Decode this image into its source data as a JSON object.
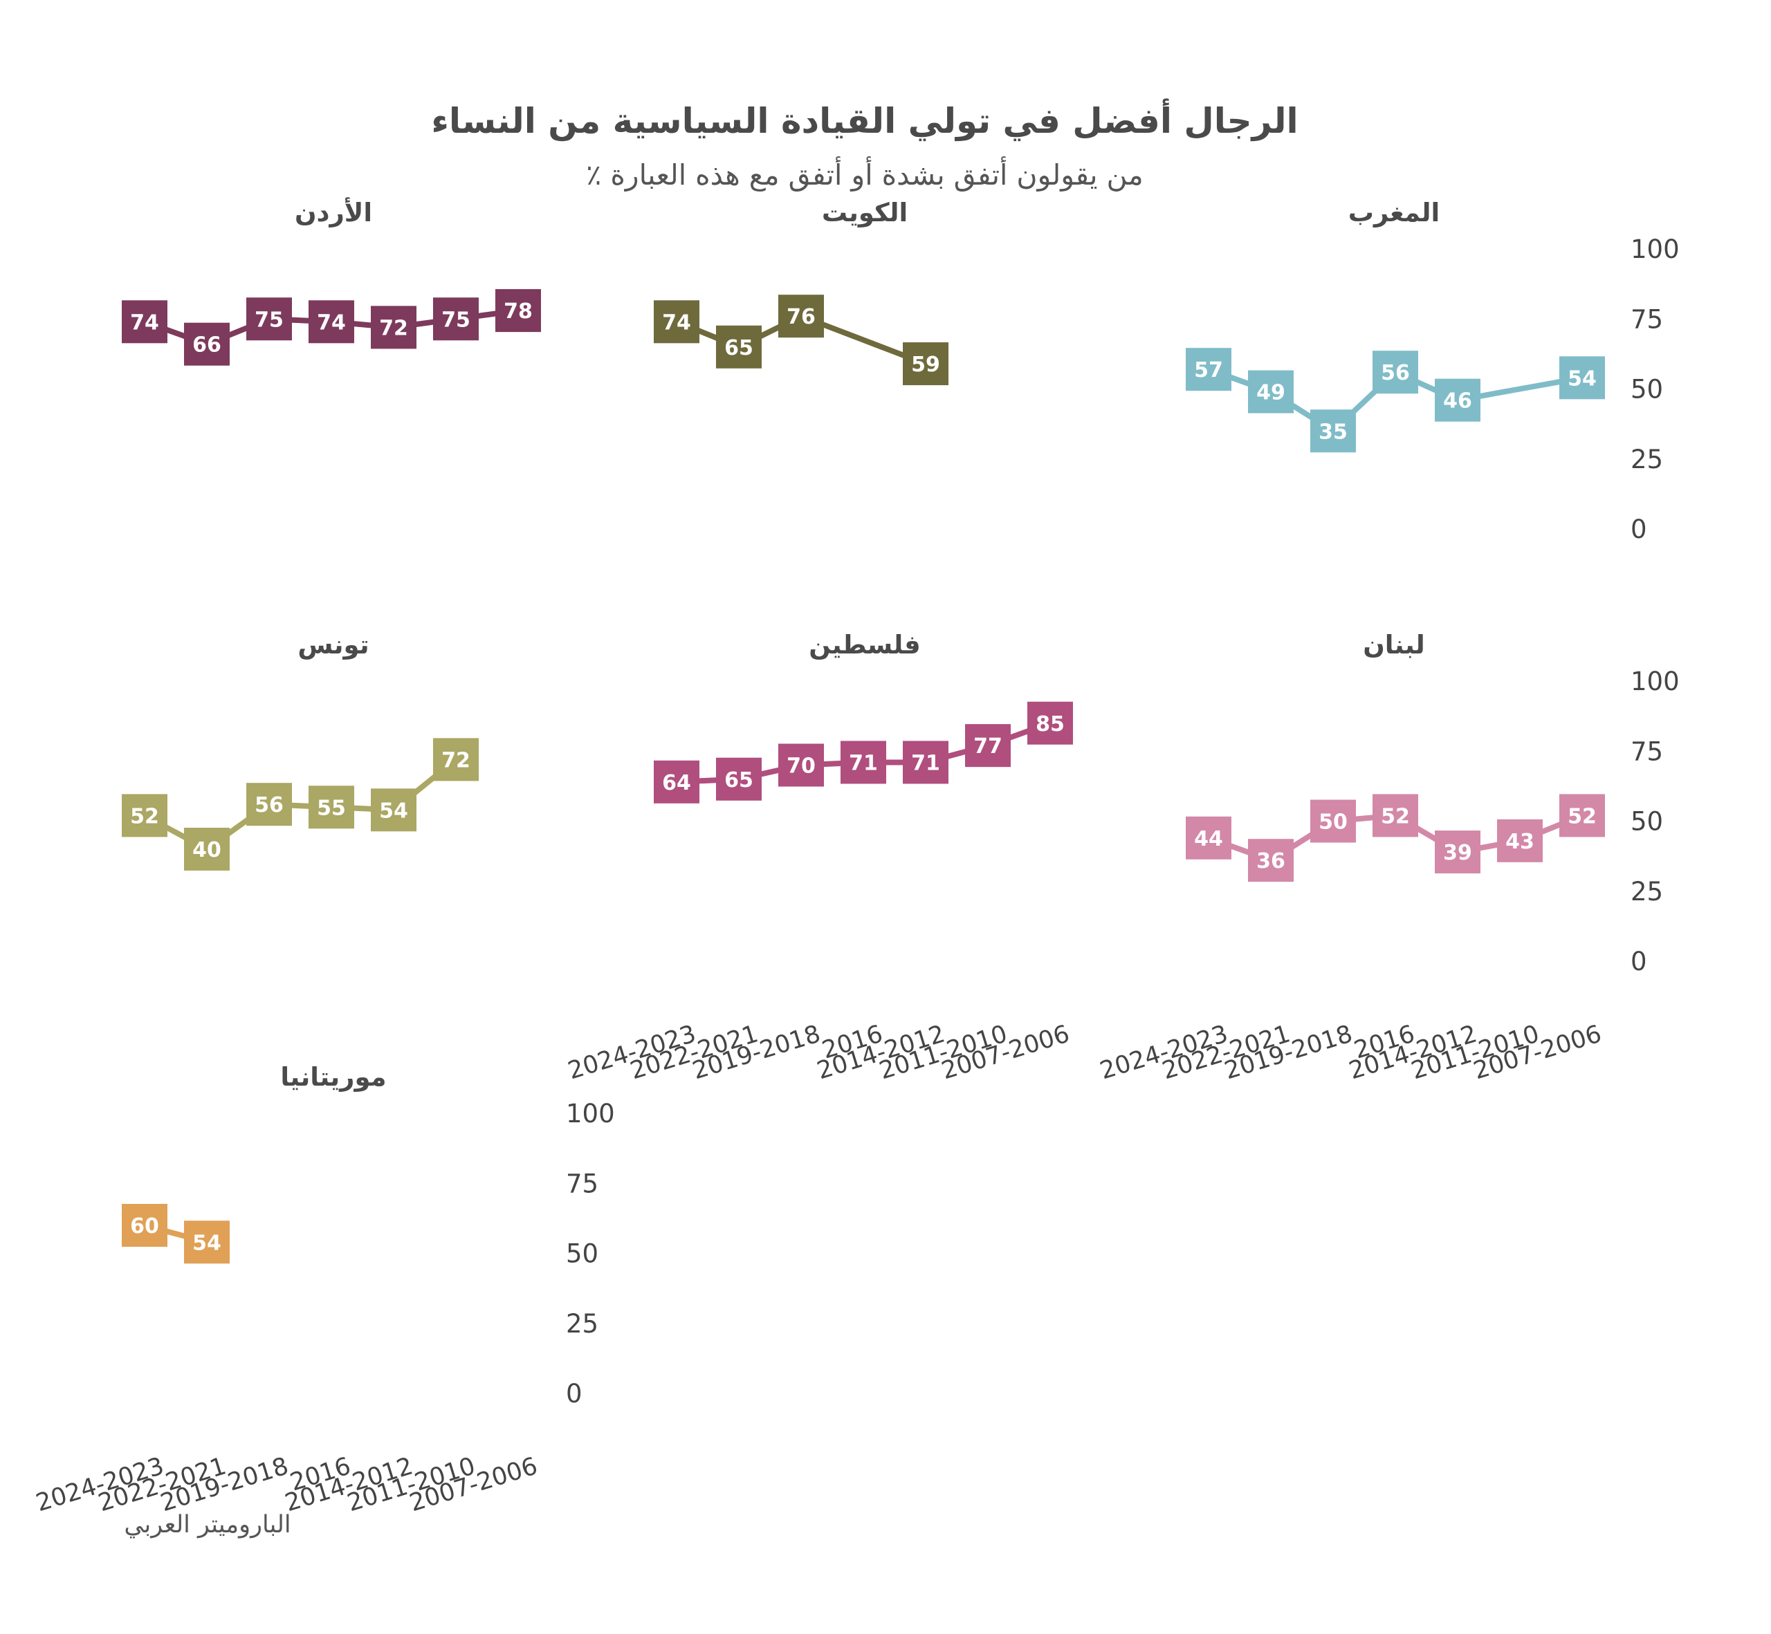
{
  "chart_data": {
    "type": "line",
    "title": "الرجال أفضل في تولي القيادة السياسية من النساء",
    "subtitle": "٪ من يقولون أتفق بشدة أو أتفق مع هذه العبارة",
    "source": "الباروميتر العربي",
    "x": [
      "2024-2023",
      "2022-2021",
      "2019-2018",
      "2016",
      "2014-2012",
      "2011-2010",
      "2007-2006"
    ],
    "y_ticks": [
      "100",
      "75",
      "50",
      "25",
      "0"
    ],
    "ylim": [
      0,
      100
    ],
    "grid": false,
    "panels": [
      {
        "name": "المغرب",
        "color": "#7fbcc8",
        "values": [
          57,
          49,
          35,
          56,
          46,
          null,
          54
        ]
      },
      {
        "name": "الكويت",
        "color": "#6e6a3c",
        "values": [
          74,
          65,
          76,
          null,
          59,
          null,
          null
        ]
      },
      {
        "name": "الأردن",
        "color": "#7d3a5c",
        "values": [
          74,
          66,
          75,
          74,
          72,
          75,
          78
        ]
      },
      {
        "name": "لبنان",
        "color": "#d388a8",
        "values": [
          44,
          36,
          50,
          52,
          39,
          43,
          52
        ]
      },
      {
        "name": "فلسطين",
        "color": "#b04e7e",
        "values": [
          64,
          65,
          70,
          71,
          71,
          77,
          85
        ]
      },
      {
        "name": "تونس",
        "color": "#aba764",
        "values": [
          52,
          40,
          56,
          55,
          54,
          72,
          null
        ]
      },
      {
        "name": "موريتانيا",
        "color": "#e0a055",
        "values": [
          60,
          54,
          null,
          null,
          null,
          null,
          null
        ]
      }
    ]
  }
}
